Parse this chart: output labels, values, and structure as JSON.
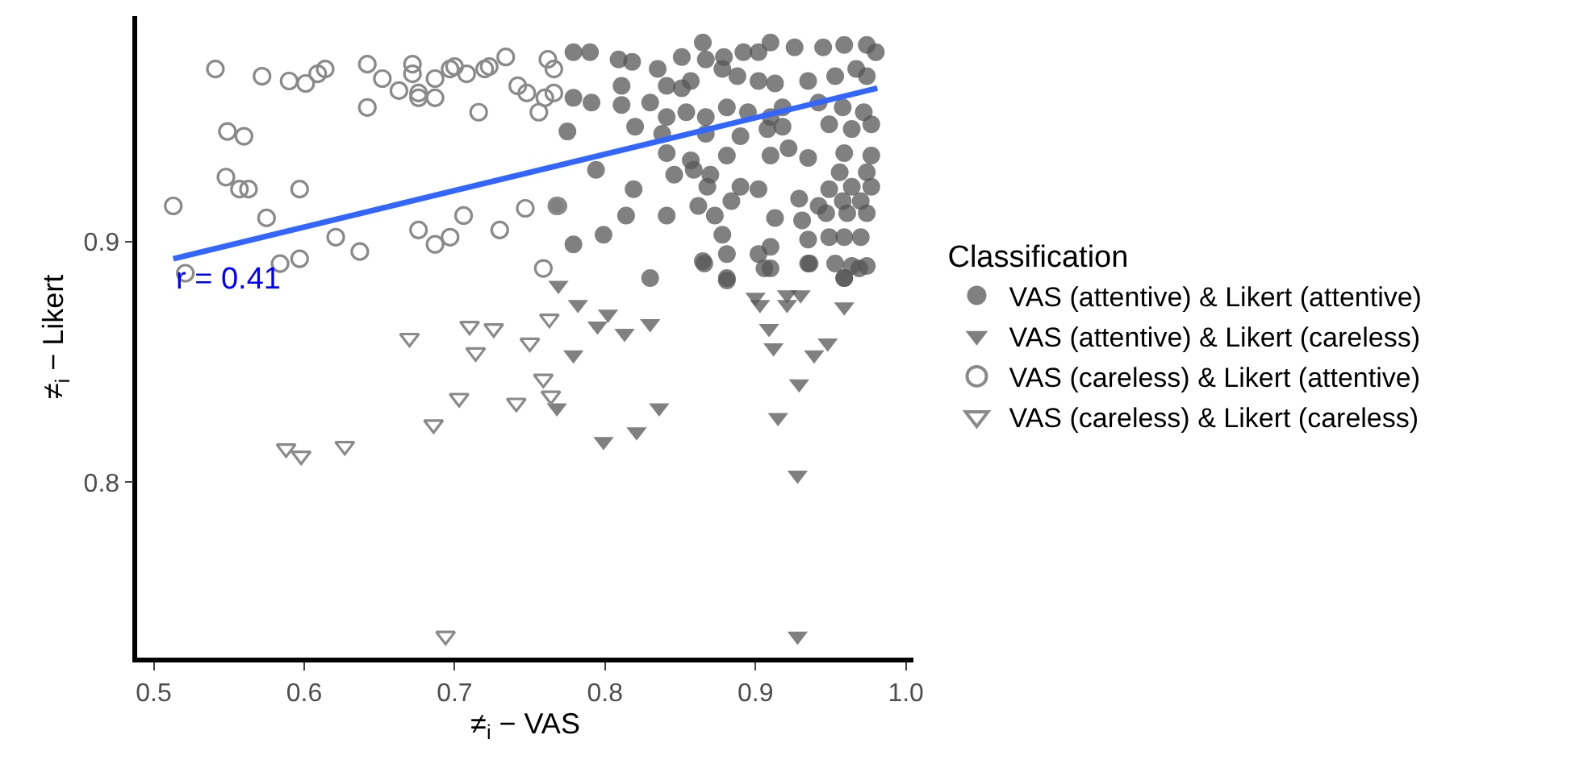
{
  "chart_data": {
    "type": "scatter",
    "xlabel": "≠$_{i}$ − VAS",
    "ylabel": "≠$_{i}$ − Likert",
    "legend_title": "Classification",
    "legend": "right",
    "xlim": [
      0.489,
      1.005
    ],
    "xticks": [
      0.5,
      0.6,
      0.7,
      0.8,
      0.9,
      {
        "value": 1.0,
        "label": "1.0"
      }
    ],
    "ylim": [
      0.727,
      0.994
    ],
    "yticks": [
      0.8,
      0.9
    ],
    "annotations": [
      {
        "text": "r = 0.41",
        "x": 0.513,
        "y": 0.884
      }
    ],
    "series": [
      {
        "name": "VAS (attentive) & Likert (attentive)",
        "color": "#555555",
        "marker": "circle",
        "x": [
          0.779,
          0.79,
          0.779,
          0.791,
          0.775,
          0.794,
          0.779,
          0.799,
          0.769,
          0.83,
          0.866,
          0.881,
          0.91,
          0.936,
          0.959,
          0.969,
          0.865,
          0.91,
          0.926,
          0.809,
          0.818,
          0.835,
          0.851,
          0.867,
          0.879,
          0.892,
          0.902,
          0.945,
          0.959,
          0.974,
          0.98,
          0.811,
          0.811,
          0.83,
          0.841,
          0.851,
          0.857,
          0.878,
          0.888,
          0.902,
          0.913,
          0.935,
          0.953,
          0.967,
          0.974,
          0.841,
          0.854,
          0.867,
          0.881,
          0.895,
          0.91,
          0.918,
          0.942,
          0.958,
          0.972,
          0.82,
          0.838,
          0.867,
          0.89,
          0.908,
          0.918,
          0.949,
          0.964,
          0.977,
          0.841,
          0.857,
          0.881,
          0.91,
          0.922,
          0.935,
          0.959,
          0.977,
          0.846,
          0.859,
          0.87,
          0.956,
          0.974,
          0.819,
          0.868,
          0.89,
          0.902,
          0.949,
          0.964,
          0.977,
          0.884,
          0.929,
          0.942,
          0.958,
          0.97,
          0.814,
          0.841,
          0.862,
          0.873,
          0.913,
          0.931,
          0.947,
          0.961,
          0.974,
          0.878,
          0.935,
          0.949,
          0.959,
          0.97,
          0.865,
          0.881,
          0.902,
          0.91,
          0.935,
          0.953,
          0.964,
          0.974,
          0.881,
          0.906,
          0.959
        ],
        "values": [
          0.979,
          0.979,
          0.96,
          0.958,
          0.946,
          0.93,
          0.899,
          0.903,
          0.915,
          0.885,
          0.891,
          0.884,
          0.889,
          0.891,
          0.885,
          0.889,
          0.983,
          0.983,
          0.981,
          0.976,
          0.975,
          0.972,
          0.977,
          0.976,
          0.977,
          0.979,
          0.979,
          0.981,
          0.982,
          0.982,
          0.979,
          0.965,
          0.957,
          0.958,
          0.965,
          0.964,
          0.967,
          0.972,
          0.969,
          0.967,
          0.966,
          0.967,
          0.969,
          0.972,
          0.969,
          0.952,
          0.954,
          0.952,
          0.956,
          0.954,
          0.952,
          0.956,
          0.958,
          0.956,
          0.954,
          0.948,
          0.945,
          0.945,
          0.944,
          0.947,
          0.948,
          0.949,
          0.947,
          0.949,
          0.937,
          0.934,
          0.936,
          0.936,
          0.939,
          0.935,
          0.937,
          0.936,
          0.928,
          0.93,
          0.928,
          0.929,
          0.929,
          0.922,
          0.923,
          0.923,
          0.922,
          0.922,
          0.923,
          0.923,
          0.917,
          0.918,
          0.915,
          0.917,
          0.917,
          0.911,
          0.911,
          0.915,
          0.911,
          0.91,
          0.909,
          0.912,
          0.912,
          0.912,
          0.903,
          0.901,
          0.902,
          0.902,
          0.902,
          0.892,
          0.895,
          0.895,
          0.898,
          0.891,
          0.891,
          0.89,
          0.89,
          0.885,
          0.889,
          0.885
        ]
      },
      {
        "name": "VAS (attentive) & Likert (careless)",
        "color": "#555555",
        "marker": "triangle",
        "x": [
          0.769,
          0.782,
          0.802,
          0.795,
          0.813,
          0.83,
          0.779,
          0.768,
          0.836,
          0.821,
          0.799,
          0.9,
          0.903,
          0.921,
          0.93,
          0.921,
          0.909,
          0.912,
          0.959,
          0.948,
          0.939,
          0.929,
          0.915,
          0.928,
          0.928
        ],
        "values": [
          0.882,
          0.874,
          0.87,
          0.865,
          0.862,
          0.866,
          0.853,
          0.831,
          0.831,
          0.821,
          0.817,
          0.877,
          0.874,
          0.878,
          0.878,
          0.874,
          0.864,
          0.856,
          0.873,
          0.858,
          0.853,
          0.841,
          0.827,
          0.803,
          0.736
        ]
      },
      {
        "name": "VAS (careless) & Likert (attentive)",
        "color": "#8a8a8a",
        "marker": "circle-open",
        "x": [
          0.541,
          0.572,
          0.59,
          0.601,
          0.609,
          0.614,
          0.642,
          0.652,
          0.663,
          0.672,
          0.672,
          0.676,
          0.676,
          0.687,
          0.687,
          0.697,
          0.7,
          0.708,
          0.72,
          0.723,
          0.734,
          0.742,
          0.748,
          0.76,
          0.756,
          0.766,
          0.762,
          0.766,
          0.642,
          0.716,
          0.549,
          0.56,
          0.548,
          0.557,
          0.563,
          0.597,
          0.513,
          0.575,
          0.621,
          0.637,
          0.676,
          0.687,
          0.697,
          0.706,
          0.73,
          0.747,
          0.768,
          0.584,
          0.597,
          0.521,
          0.759
        ],
        "values": [
          0.972,
          0.969,
          0.967,
          0.966,
          0.97,
          0.972,
          0.974,
          0.968,
          0.963,
          0.974,
          0.97,
          0.962,
          0.96,
          0.968,
          0.96,
          0.972,
          0.973,
          0.97,
          0.972,
          0.973,
          0.977,
          0.965,
          0.962,
          0.96,
          0.954,
          0.962,
          0.976,
          0.972,
          0.956,
          0.954,
          0.946,
          0.944,
          0.927,
          0.922,
          0.922,
          0.922,
          0.915,
          0.91,
          0.902,
          0.896,
          0.905,
          0.899,
          0.902,
          0.911,
          0.905,
          0.914,
          0.915,
          0.891,
          0.893,
          0.887,
          0.889
        ]
      },
      {
        "name": "VAS (careless) & Likert (careless)",
        "color": "#8a8a8a",
        "marker": "triangle-open",
        "x": [
          0.67,
          0.71,
          0.726,
          0.714,
          0.75,
          0.763,
          0.759,
          0.764,
          0.741,
          0.703,
          0.686,
          0.627,
          0.588,
          0.598,
          0.694
        ],
        "values": [
          0.86,
          0.865,
          0.864,
          0.854,
          0.858,
          0.868,
          0.843,
          0.836,
          0.833,
          0.835,
          0.824,
          0.815,
          0.814,
          0.811,
          0.736
        ]
      },
      {
        "type": "line",
        "color": "#3366ff",
        "x": [
          0.513,
          0.981
        ],
        "values": [
          0.893,
          0.964
        ]
      }
    ]
  }
}
